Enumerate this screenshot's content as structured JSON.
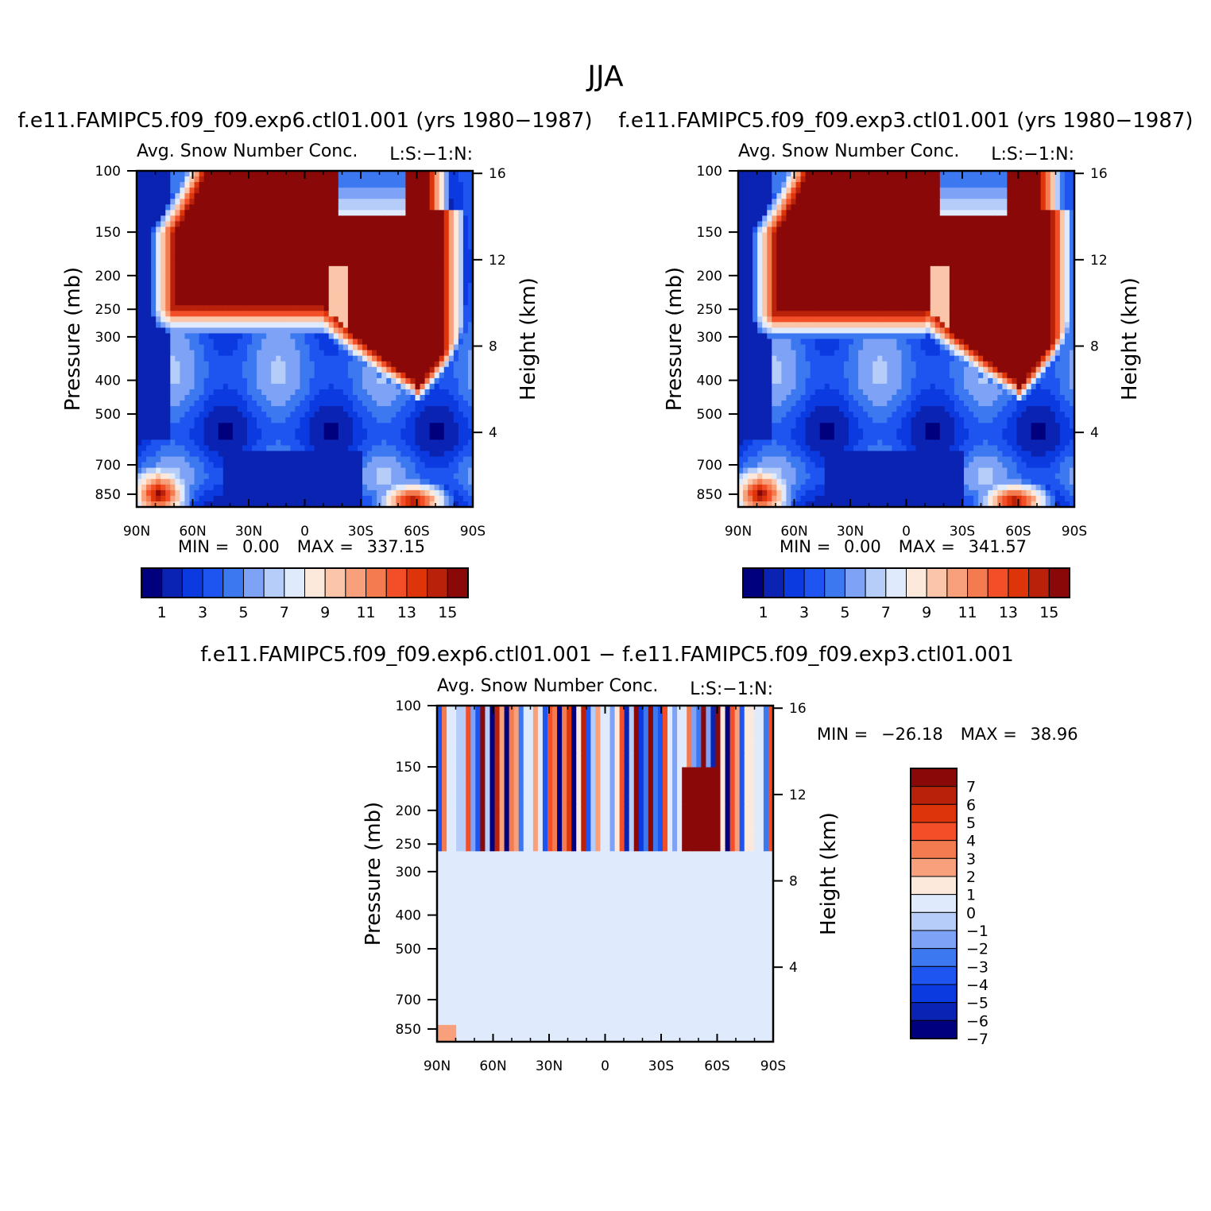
{
  "figure_title": "JJA",
  "chart_data": [
    {
      "type": "heatmap",
      "title": "f.e11.FAMIPC5.f09_f09.exp6.ctl01.001 (yrs 1980−1987)",
      "subtitle": "Avg. Snow Number Conc.",
      "units_label": "L:S:−1:N:",
      "xlabel": "",
      "ylabel": "Pressure (mb)",
      "ylabel_right": "Height (km)",
      "x_ticks": [
        "90N",
        "60N",
        "30N",
        "0",
        "30S",
        "60S",
        "90S"
      ],
      "y_ticks": [
        "100",
        "150",
        "200",
        "250",
        "300",
        "400",
        "500",
        "700",
        "850"
      ],
      "y_ticks_right": [
        "16",
        "12",
        "8",
        "4"
      ],
      "y_scale": "log",
      "stats": {
        "min_label": "MIN =",
        "min": "0.00",
        "max_label": "MAX =",
        "max": "337.15"
      },
      "colorbar": {
        "orientation": "horizontal",
        "colors": [
          "#00007f",
          "#0a23b2",
          "#0a3ae0",
          "#1e55f0",
          "#3c78f0",
          "#7ea2f5",
          "#b6cdfa",
          "#dfebfd",
          "#fde9dc",
          "#fbc5a9",
          "#f7a07b",
          "#f47a50",
          "#f24e28",
          "#de3409",
          "#b9210a",
          "#8a0808"
        ],
        "labels": [
          "1",
          "3",
          "5",
          "7",
          "9",
          "11",
          "13",
          "15"
        ]
      }
    },
    {
      "type": "heatmap",
      "title": "f.e11.FAMIPC5.f09_f09.exp3.ctl01.001 (yrs 1980−1987)",
      "subtitle": "Avg. Snow Number Conc.",
      "units_label": "L:S:−1:N:",
      "xlabel": "",
      "ylabel": "Pressure (mb)",
      "ylabel_right": "Height (km)",
      "x_ticks": [
        "90N",
        "60N",
        "30N",
        "0",
        "30S",
        "60S",
        "90S"
      ],
      "y_ticks": [
        "100",
        "150",
        "200",
        "250",
        "300",
        "400",
        "500",
        "700",
        "850"
      ],
      "y_ticks_right": [
        "16",
        "12",
        "8",
        "4"
      ],
      "y_scale": "log",
      "stats": {
        "min_label": "MIN =",
        "min": "0.00",
        "max_label": "MAX =",
        "max": "341.57"
      },
      "colorbar": {
        "orientation": "horizontal",
        "colors": [
          "#00007f",
          "#0a23b2",
          "#0a3ae0",
          "#1e55f0",
          "#3c78f0",
          "#7ea2f5",
          "#b6cdfa",
          "#dfebfd",
          "#fde9dc",
          "#fbc5a9",
          "#f7a07b",
          "#f47a50",
          "#f24e28",
          "#de3409",
          "#b9210a",
          "#8a0808"
        ],
        "labels": [
          "1",
          "3",
          "5",
          "7",
          "9",
          "11",
          "13",
          "15"
        ]
      }
    },
    {
      "type": "heatmap",
      "title": "f.e11.FAMIPC5.f09_f09.exp6.ctl01.001 − f.e11.FAMIPC5.f09_f09.exp3.ctl01.001",
      "subtitle": "Avg. Snow Number Conc.",
      "units_label": "L:S:−1:N:",
      "xlabel": "",
      "ylabel": "Pressure (mb)",
      "ylabel_right": "Height (km)",
      "x_ticks": [
        "90N",
        "60N",
        "30N",
        "0",
        "30S",
        "60S",
        "90S"
      ],
      "y_ticks": [
        "100",
        "150",
        "200",
        "250",
        "300",
        "400",
        "500",
        "700",
        "850"
      ],
      "y_ticks_right": [
        "16",
        "12",
        "8",
        "4"
      ],
      "y_scale": "log",
      "stats": {
        "min_label": "MIN =",
        "min": "−26.18",
        "max_label": "MAX =",
        "max": "38.96"
      },
      "colorbar": {
        "orientation": "vertical",
        "colors": [
          "#8a0808",
          "#b9210a",
          "#de3409",
          "#f24e28",
          "#f47a50",
          "#f7a07b",
          "#fde9dc",
          "#dfebfd",
          "#b6cdfa",
          "#7ea2f5",
          "#3c78f0",
          "#1e55f0",
          "#0a3ae0",
          "#0a23b2",
          "#00007f"
        ],
        "labels": [
          "7",
          "6",
          "5",
          "4",
          "3",
          "2",
          "1",
          "0",
          "−1",
          "−2",
          "−3",
          "−4",
          "−5",
          "−6",
          "−7"
        ]
      }
    }
  ]
}
